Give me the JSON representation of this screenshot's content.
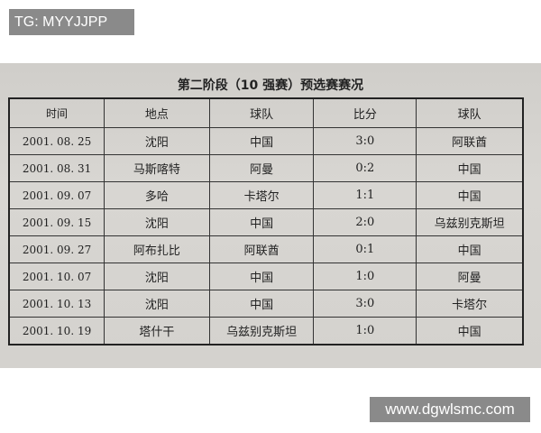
{
  "watermarks": {
    "top_left": "TG: MYYJJPP",
    "bottom_right": "www.dgwlsmc.com"
  },
  "document": {
    "title": "第二阶段（10 强赛）预选赛赛况",
    "headers": [
      "时间",
      "地点",
      "球队",
      "比分",
      "球队"
    ],
    "rows": [
      [
        "2001. 08. 25",
        "沈阳",
        "中国",
        "3:0",
        "阿联酋"
      ],
      [
        "2001. 08. 31",
        "马斯喀特",
        "阿曼",
        "0:2",
        "中国"
      ],
      [
        "2001. 09. 07",
        "多哈",
        "卡塔尔",
        "1:1",
        "中国"
      ],
      [
        "2001. 09. 15",
        "沈阳",
        "中国",
        "2:0",
        "乌兹别克斯坦"
      ],
      [
        "2001. 09. 27",
        "阿布扎比",
        "阿联酋",
        "0:1",
        "中国"
      ],
      [
        "2001. 10. 07",
        "沈阳",
        "中国",
        "1:0",
        "阿曼"
      ],
      [
        "2001. 10. 13",
        "沈阳",
        "中国",
        "3:0",
        "卡塔尔"
      ],
      [
        "2001. 10. 19",
        "塔什干",
        "乌兹别克斯坦",
        "1:0",
        "中国"
      ]
    ]
  }
}
